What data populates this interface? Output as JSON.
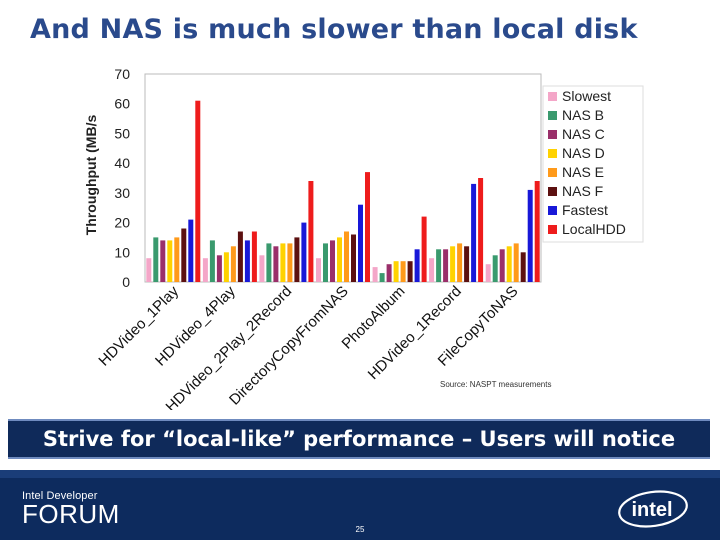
{
  "slide": {
    "title": "And NAS is much slower than local disk",
    "source": "Source: NASPT measurements",
    "banner": "Strive for “local-like” performance – Users will notice",
    "page_number": "25",
    "footer_logo_small": "Intel Developer",
    "footer_logo_big": "FORUM",
    "intel_logo_text": "intel"
  },
  "chart_data": {
    "type": "bar",
    "ylabel": "Throughput (MB/s",
    "ylim": [
      0,
      70
    ],
    "yticks": [
      0,
      10,
      20,
      30,
      40,
      50,
      60,
      70
    ],
    "grid": false,
    "legend_position": "right",
    "categories": [
      "HDVideo_1Play",
      "HDVideo_4Play",
      "HDVideo_2Play_2Record",
      "DirectoryCopyFromNAS",
      "PhotoAlbum",
      "HDVideo_1Record",
      "FileCopyToNAS"
    ],
    "series": [
      {
        "name": "Slowest",
        "color": "#f4a6c8",
        "values": [
          8,
          8,
          9,
          8,
          5,
          8,
          6
        ]
      },
      {
        "name": "NAS B",
        "color": "#3a9a6e",
        "values": [
          15,
          14,
          13,
          13,
          3,
          11,
          9
        ]
      },
      {
        "name": "NAS C",
        "color": "#9a2f6a",
        "values": [
          14,
          9,
          12,
          14,
          6,
          11,
          11
        ]
      },
      {
        "name": "NAS D",
        "color": "#ffd200",
        "values": [
          14,
          10,
          13,
          15,
          7,
          12,
          12
        ]
      },
      {
        "name": "NAS E",
        "color": "#ff9a1a",
        "values": [
          15,
          12,
          13,
          17,
          7,
          13,
          13
        ]
      },
      {
        "name": "NAS F",
        "color": "#5c1010",
        "values": [
          18,
          17,
          15,
          16,
          7,
          12,
          10
        ]
      },
      {
        "name": "Fastest",
        "color": "#1818d8",
        "values": [
          21,
          14,
          20,
          26,
          11,
          33,
          31
        ]
      },
      {
        "name": "LocalHDD",
        "color": "#ee1c1c",
        "values": [
          61,
          17,
          34,
          37,
          22,
          35,
          34
        ]
      }
    ]
  }
}
